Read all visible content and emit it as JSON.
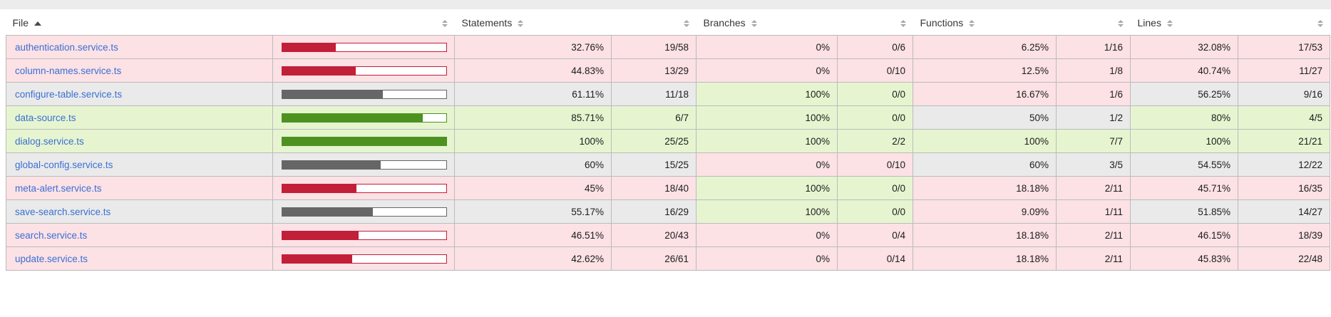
{
  "top_strip": {
    "color": "#ececec"
  },
  "header": {
    "file_label": "File",
    "statements_label": "Statements",
    "branches_label": "Branches",
    "functions_label": "Functions",
    "lines_label": "Lines",
    "sorted_column": "File",
    "sort_direction": "asc"
  },
  "status_colors": {
    "low": {
      "background": "#FCE1E5",
      "solid": "#C21F39"
    },
    "medium": {
      "background": "#eaeaea",
      "solid": "#666666"
    },
    "high": {
      "background": "#E6F5D0",
      "solid": "#4D9221"
    }
  },
  "link_color": "#3b6fd4",
  "table": {
    "metrics": [
      "statements",
      "branches",
      "functions",
      "lines"
    ],
    "rows": [
      {
        "file": "authentication.service.ts",
        "bar_pct": 32.76,
        "statements": {
          "pct": "32.76%",
          "ratio": "19/58",
          "status": "low"
        },
        "branches": {
          "pct": "0%",
          "ratio": "0/6",
          "status": "low"
        },
        "functions": {
          "pct": "6.25%",
          "ratio": "1/16",
          "status": "low"
        },
        "lines": {
          "pct": "32.08%",
          "ratio": "17/53",
          "status": "low"
        }
      },
      {
        "file": "column-names.service.ts",
        "bar_pct": 44.83,
        "statements": {
          "pct": "44.83%",
          "ratio": "13/29",
          "status": "low"
        },
        "branches": {
          "pct": "0%",
          "ratio": "0/10",
          "status": "low"
        },
        "functions": {
          "pct": "12.5%",
          "ratio": "1/8",
          "status": "low"
        },
        "lines": {
          "pct": "40.74%",
          "ratio": "11/27",
          "status": "low"
        }
      },
      {
        "file": "configure-table.service.ts",
        "bar_pct": 61.11,
        "statements": {
          "pct": "61.11%",
          "ratio": "11/18",
          "status": "medium"
        },
        "branches": {
          "pct": "100%",
          "ratio": "0/0",
          "status": "high"
        },
        "functions": {
          "pct": "16.67%",
          "ratio": "1/6",
          "status": "low"
        },
        "lines": {
          "pct": "56.25%",
          "ratio": "9/16",
          "status": "medium"
        }
      },
      {
        "file": "data-source.ts",
        "bar_pct": 85.71,
        "statements": {
          "pct": "85.71%",
          "ratio": "6/7",
          "status": "high"
        },
        "branches": {
          "pct": "100%",
          "ratio": "0/0",
          "status": "high"
        },
        "functions": {
          "pct": "50%",
          "ratio": "1/2",
          "status": "medium"
        },
        "lines": {
          "pct": "80%",
          "ratio": "4/5",
          "status": "high"
        }
      },
      {
        "file": "dialog.service.ts",
        "bar_pct": 100,
        "statements": {
          "pct": "100%",
          "ratio": "25/25",
          "status": "high"
        },
        "branches": {
          "pct": "100%",
          "ratio": "2/2",
          "status": "high"
        },
        "functions": {
          "pct": "100%",
          "ratio": "7/7",
          "status": "high"
        },
        "lines": {
          "pct": "100%",
          "ratio": "21/21",
          "status": "high"
        }
      },
      {
        "file": "global-config.service.ts",
        "bar_pct": 60,
        "statements": {
          "pct": "60%",
          "ratio": "15/25",
          "status": "medium"
        },
        "branches": {
          "pct": "0%",
          "ratio": "0/10",
          "status": "low"
        },
        "functions": {
          "pct": "60%",
          "ratio": "3/5",
          "status": "medium"
        },
        "lines": {
          "pct": "54.55%",
          "ratio": "12/22",
          "status": "medium"
        }
      },
      {
        "file": "meta-alert.service.ts",
        "bar_pct": 45,
        "statements": {
          "pct": "45%",
          "ratio": "18/40",
          "status": "low"
        },
        "branches": {
          "pct": "100%",
          "ratio": "0/0",
          "status": "high"
        },
        "functions": {
          "pct": "18.18%",
          "ratio": "2/11",
          "status": "low"
        },
        "lines": {
          "pct": "45.71%",
          "ratio": "16/35",
          "status": "low"
        }
      },
      {
        "file": "save-search.service.ts",
        "bar_pct": 55.17,
        "statements": {
          "pct": "55.17%",
          "ratio": "16/29",
          "status": "medium"
        },
        "branches": {
          "pct": "100%",
          "ratio": "0/0",
          "status": "high"
        },
        "functions": {
          "pct": "9.09%",
          "ratio": "1/11",
          "status": "low"
        },
        "lines": {
          "pct": "51.85%",
          "ratio": "14/27",
          "status": "medium"
        }
      },
      {
        "file": "search.service.ts",
        "bar_pct": 46.51,
        "statements": {
          "pct": "46.51%",
          "ratio": "20/43",
          "status": "low"
        },
        "branches": {
          "pct": "0%",
          "ratio": "0/4",
          "status": "low"
        },
        "functions": {
          "pct": "18.18%",
          "ratio": "2/11",
          "status": "low"
        },
        "lines": {
          "pct": "46.15%",
          "ratio": "18/39",
          "status": "low"
        }
      },
      {
        "file": "update.service.ts",
        "bar_pct": 42.62,
        "statements": {
          "pct": "42.62%",
          "ratio": "26/61",
          "status": "low"
        },
        "branches": {
          "pct": "0%",
          "ratio": "0/14",
          "status": "low"
        },
        "functions": {
          "pct": "18.18%",
          "ratio": "2/11",
          "status": "low"
        },
        "lines": {
          "pct": "45.83%",
          "ratio": "22/48",
          "status": "low"
        }
      }
    ]
  }
}
